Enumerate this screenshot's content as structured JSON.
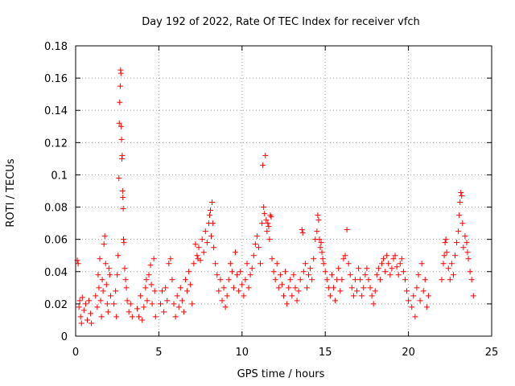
{
  "chart_data": {
    "type": "scatter",
    "title": "Day 192 of 2022, Rate Of TEC Index for receiver vfch",
    "xlabel": "GPS time / hours",
    "ylabel": "ROTI / TECUs",
    "xlim": [
      0,
      25
    ],
    "ylim": [
      0,
      0.18
    ],
    "xticks": [
      0,
      5,
      10,
      15,
      20,
      25
    ],
    "yticks": [
      0,
      0.02,
      0.04,
      0.06,
      0.08,
      0.1,
      0.12,
      0.14,
      0.16,
      0.18
    ],
    "xtick_labels": [
      "0",
      "5",
      "10",
      "15",
      "20",
      "25"
    ],
    "ytick_labels": [
      "0",
      "0.02",
      "0.04",
      "0.06",
      "0.08",
      "0.1",
      "0.12",
      "0.14",
      "0.16",
      "0.18"
    ],
    "grid": true,
    "marker": "+",
    "color": "#ff0000",
    "series": [
      {
        "points": [
          [
            0.1,
            0.047
          ],
          [
            0.15,
            0.045
          ],
          [
            0.2,
            0.018
          ],
          [
            0.25,
            0.022
          ],
          [
            0.3,
            0.012
          ],
          [
            0.35,
            0.008
          ],
          [
            0.4,
            0.024
          ],
          [
            0.5,
            0.016
          ],
          [
            0.6,
            0.02
          ],
          [
            0.7,
            0.01
          ],
          [
            0.8,
            0.022
          ],
          [
            0.9,
            0.014
          ],
          [
            0.95,
            0.008
          ],
          [
            1.2,
            0.025
          ],
          [
            1.3,
            0.018
          ],
          [
            1.35,
            0.038
          ],
          [
            1.4,
            0.03
          ],
          [
            1.45,
            0.048
          ],
          [
            1.5,
            0.022
          ],
          [
            1.55,
            0.012
          ],
          [
            1.6,
            0.035
          ],
          [
            1.65,
            0.028
          ],
          [
            1.7,
            0.057
          ],
          [
            1.75,
            0.062
          ],
          [
            1.8,
            0.045
          ],
          [
            1.85,
            0.032
          ],
          [
            1.9,
            0.02
          ],
          [
            1.95,
            0.015
          ],
          [
            2.0,
            0.042
          ],
          [
            2.05,
            0.038
          ],
          [
            2.1,
            0.025
          ],
          [
            2.3,
            0.02
          ],
          [
            2.4,
            0.028
          ],
          [
            2.45,
            0.012
          ],
          [
            2.5,
            0.038
          ],
          [
            2.55,
            0.05
          ],
          [
            2.6,
            0.098
          ],
          [
            2.62,
            0.132
          ],
          [
            2.65,
            0.145
          ],
          [
            2.68,
            0.155
          ],
          [
            2.7,
            0.165
          ],
          [
            2.72,
            0.163
          ],
          [
            2.74,
            0.13
          ],
          [
            2.76,
            0.122
          ],
          [
            2.78,
            0.11
          ],
          [
            2.8,
            0.112
          ],
          [
            2.82,
            0.09
          ],
          [
            2.84,
            0.086
          ],
          [
            2.86,
            0.079
          ],
          [
            2.88,
            0.06
          ],
          [
            2.9,
            0.058
          ],
          [
            2.95,
            0.042
          ],
          [
            3.0,
            0.035
          ],
          [
            3.05,
            0.03
          ],
          [
            3.1,
            0.022
          ],
          [
            3.2,
            0.015
          ],
          [
            3.3,
            0.02
          ],
          [
            3.4,
            0.012
          ],
          [
            3.7,
            0.017
          ],
          [
            3.8,
            0.012
          ],
          [
            3.9,
            0.025
          ],
          [
            4.0,
            0.01
          ],
          [
            4.1,
            0.018
          ],
          [
            4.2,
            0.03
          ],
          [
            4.25,
            0.035
          ],
          [
            4.3,
            0.022
          ],
          [
            4.4,
            0.038
          ],
          [
            4.5,
            0.044
          ],
          [
            4.55,
            0.032
          ],
          [
            4.6,
            0.02
          ],
          [
            4.7,
            0.048
          ],
          [
            4.75,
            0.028
          ],
          [
            4.8,
            0.012
          ],
          [
            5.1,
            0.02
          ],
          [
            5.2,
            0.028
          ],
          [
            5.3,
            0.015
          ],
          [
            5.4,
            0.03
          ],
          [
            5.5,
            0.022
          ],
          [
            5.6,
            0.045
          ],
          [
            5.7,
            0.048
          ],
          [
            5.8,
            0.035
          ],
          [
            5.9,
            0.02
          ],
          [
            6.0,
            0.012
          ],
          [
            6.1,
            0.025
          ],
          [
            6.2,
            0.018
          ],
          [
            6.3,
            0.03
          ],
          [
            6.4,
            0.022
          ],
          [
            6.5,
            0.015
          ],
          [
            6.6,
            0.035
          ],
          [
            6.7,
            0.028
          ],
          [
            6.8,
            0.04
          ],
          [
            6.9,
            0.032
          ],
          [
            7.0,
            0.02
          ],
          [
            7.1,
            0.045
          ],
          [
            7.2,
            0.057
          ],
          [
            7.3,
            0.05
          ],
          [
            7.35,
            0.048
          ],
          [
            7.4,
            0.055
          ],
          [
            7.5,
            0.047
          ],
          [
            7.6,
            0.06
          ],
          [
            7.7,
            0.052
          ],
          [
            7.8,
            0.065
          ],
          [
            7.9,
            0.058
          ],
          [
            8.0,
            0.07
          ],
          [
            8.05,
            0.075
          ],
          [
            8.1,
            0.078
          ],
          [
            8.15,
            0.062
          ],
          [
            8.2,
            0.083
          ],
          [
            8.25,
            0.07
          ],
          [
            8.3,
            0.055
          ],
          [
            8.4,
            0.045
          ],
          [
            8.5,
            0.038
          ],
          [
            8.6,
            0.028
          ],
          [
            8.7,
            0.035
          ],
          [
            8.8,
            0.022
          ],
          [
            8.9,
            0.03
          ],
          [
            9.0,
            0.018
          ],
          [
            9.1,
            0.025
          ],
          [
            9.2,
            0.035
          ],
          [
            9.3,
            0.045
          ],
          [
            9.4,
            0.04
          ],
          [
            9.5,
            0.03
          ],
          [
            9.6,
            0.052
          ],
          [
            9.7,
            0.038
          ],
          [
            9.8,
            0.028
          ],
          [
            9.9,
            0.04
          ],
          [
            10.0,
            0.032
          ],
          [
            10.1,
            0.025
          ],
          [
            10.2,
            0.035
          ],
          [
            10.3,
            0.045
          ],
          [
            10.4,
            0.03
          ],
          [
            10.5,
            0.038
          ],
          [
            10.6,
            0.042
          ],
          [
            10.7,
            0.05
          ],
          [
            10.8,
            0.057
          ],
          [
            10.9,
            0.062
          ],
          [
            11.0,
            0.055
          ],
          [
            11.1,
            0.045
          ],
          [
            11.2,
            0.07
          ],
          [
            11.25,
            0.106
          ],
          [
            11.3,
            0.08
          ],
          [
            11.35,
            0.076
          ],
          [
            11.4,
            0.112
          ],
          [
            11.45,
            0.072
          ],
          [
            11.5,
            0.065
          ],
          [
            11.55,
            0.07
          ],
          [
            11.6,
            0.068
          ],
          [
            11.65,
            0.06
          ],
          [
            11.7,
            0.075
          ],
          [
            11.75,
            0.074
          ],
          [
            11.8,
            0.048
          ],
          [
            11.9,
            0.04
          ],
          [
            12.0,
            0.035
          ],
          [
            12.1,
            0.045
          ],
          [
            12.2,
            0.03
          ],
          [
            12.3,
            0.038
          ],
          [
            12.4,
            0.032
          ],
          [
            12.5,
            0.025
          ],
          [
            12.6,
            0.04
          ],
          [
            12.7,
            0.02
          ],
          [
            12.8,
            0.03
          ],
          [
            12.9,
            0.035
          ],
          [
            13.0,
            0.025
          ],
          [
            13.1,
            0.038
          ],
          [
            13.2,
            0.03
          ],
          [
            13.3,
            0.022
          ],
          [
            13.4,
            0.028
          ],
          [
            13.5,
            0.035
          ],
          [
            13.6,
            0.066
          ],
          [
            13.65,
            0.064
          ],
          [
            13.7,
            0.04
          ],
          [
            13.8,
            0.045
          ],
          [
            13.9,
            0.03
          ],
          [
            14.0,
            0.038
          ],
          [
            14.1,
            0.042
          ],
          [
            14.2,
            0.035
          ],
          [
            14.3,
            0.048
          ],
          [
            14.4,
            0.06
          ],
          [
            14.5,
            0.065
          ],
          [
            14.55,
            0.075
          ],
          [
            14.6,
            0.072
          ],
          [
            14.65,
            0.06
          ],
          [
            14.7,
            0.055
          ],
          [
            14.75,
            0.058
          ],
          [
            14.8,
            0.052
          ],
          [
            14.85,
            0.048
          ],
          [
            14.9,
            0.045
          ],
          [
            15.0,
            0.04
          ],
          [
            15.1,
            0.035
          ],
          [
            15.2,
            0.03
          ],
          [
            15.3,
            0.025
          ],
          [
            15.4,
            0.038
          ],
          [
            15.5,
            0.03
          ],
          [
            15.6,
            0.022
          ],
          [
            15.7,
            0.035
          ],
          [
            15.8,
            0.042
          ],
          [
            15.9,
            0.028
          ],
          [
            16.0,
            0.035
          ],
          [
            16.1,
            0.048
          ],
          [
            16.2,
            0.05
          ],
          [
            16.3,
            0.066
          ],
          [
            16.4,
            0.045
          ],
          [
            16.5,
            0.038
          ],
          [
            16.6,
            0.03
          ],
          [
            16.7,
            0.025
          ],
          [
            16.8,
            0.035
          ],
          [
            16.9,
            0.028
          ],
          [
            17.0,
            0.042
          ],
          [
            17.1,
            0.035
          ],
          [
            17.2,
            0.025
          ],
          [
            17.3,
            0.03
          ],
          [
            17.4,
            0.038
          ],
          [
            17.5,
            0.042
          ],
          [
            17.6,
            0.035
          ],
          [
            17.7,
            0.03
          ],
          [
            17.8,
            0.025
          ],
          [
            17.9,
            0.02
          ],
          [
            18.0,
            0.028
          ],
          [
            18.1,
            0.038
          ],
          [
            18.2,
            0.042
          ],
          [
            18.3,
            0.035
          ],
          [
            18.4,
            0.045
          ],
          [
            18.5,
            0.048
          ],
          [
            18.6,
            0.04
          ],
          [
            18.7,
            0.05
          ],
          [
            18.8,
            0.045
          ],
          [
            18.9,
            0.038
          ],
          [
            19.0,
            0.042
          ],
          [
            19.1,
            0.048
          ],
          [
            19.2,
            0.05
          ],
          [
            19.3,
            0.043
          ],
          [
            19.4,
            0.038
          ],
          [
            19.5,
            0.045
          ],
          [
            19.6,
            0.048
          ],
          [
            19.7,
            0.04
          ],
          [
            19.8,
            0.035
          ],
          [
            19.9,
            0.028
          ],
          [
            20.0,
            0.022
          ],
          [
            20.2,
            0.018
          ],
          [
            20.3,
            0.025
          ],
          [
            20.4,
            0.012
          ],
          [
            20.5,
            0.03
          ],
          [
            20.6,
            0.038
          ],
          [
            20.7,
            0.022
          ],
          [
            20.8,
            0.045
          ],
          [
            20.9,
            0.028
          ],
          [
            21.0,
            0.035
          ],
          [
            21.1,
            0.018
          ],
          [
            21.2,
            0.025
          ],
          [
            22.0,
            0.035
          ],
          [
            22.1,
            0.045
          ],
          [
            22.15,
            0.05
          ],
          [
            22.2,
            0.058
          ],
          [
            22.25,
            0.06
          ],
          [
            22.3,
            0.052
          ],
          [
            22.4,
            0.042
          ],
          [
            22.5,
            0.035
          ],
          [
            22.6,
            0.045
          ],
          [
            22.7,
            0.038
          ],
          [
            22.8,
            0.05
          ],
          [
            22.9,
            0.058
          ],
          [
            23.0,
            0.065
          ],
          [
            23.05,
            0.075
          ],
          [
            23.1,
            0.083
          ],
          [
            23.15,
            0.089
          ],
          [
            23.2,
            0.087
          ],
          [
            23.25,
            0.07
          ],
          [
            23.3,
            0.055
          ],
          [
            23.4,
            0.062
          ],
          [
            23.5,
            0.058
          ],
          [
            23.55,
            0.052
          ],
          [
            23.6,
            0.048
          ],
          [
            23.7,
            0.04
          ],
          [
            23.8,
            0.035
          ],
          [
            23.9,
            0.025
          ]
        ]
      }
    ]
  }
}
